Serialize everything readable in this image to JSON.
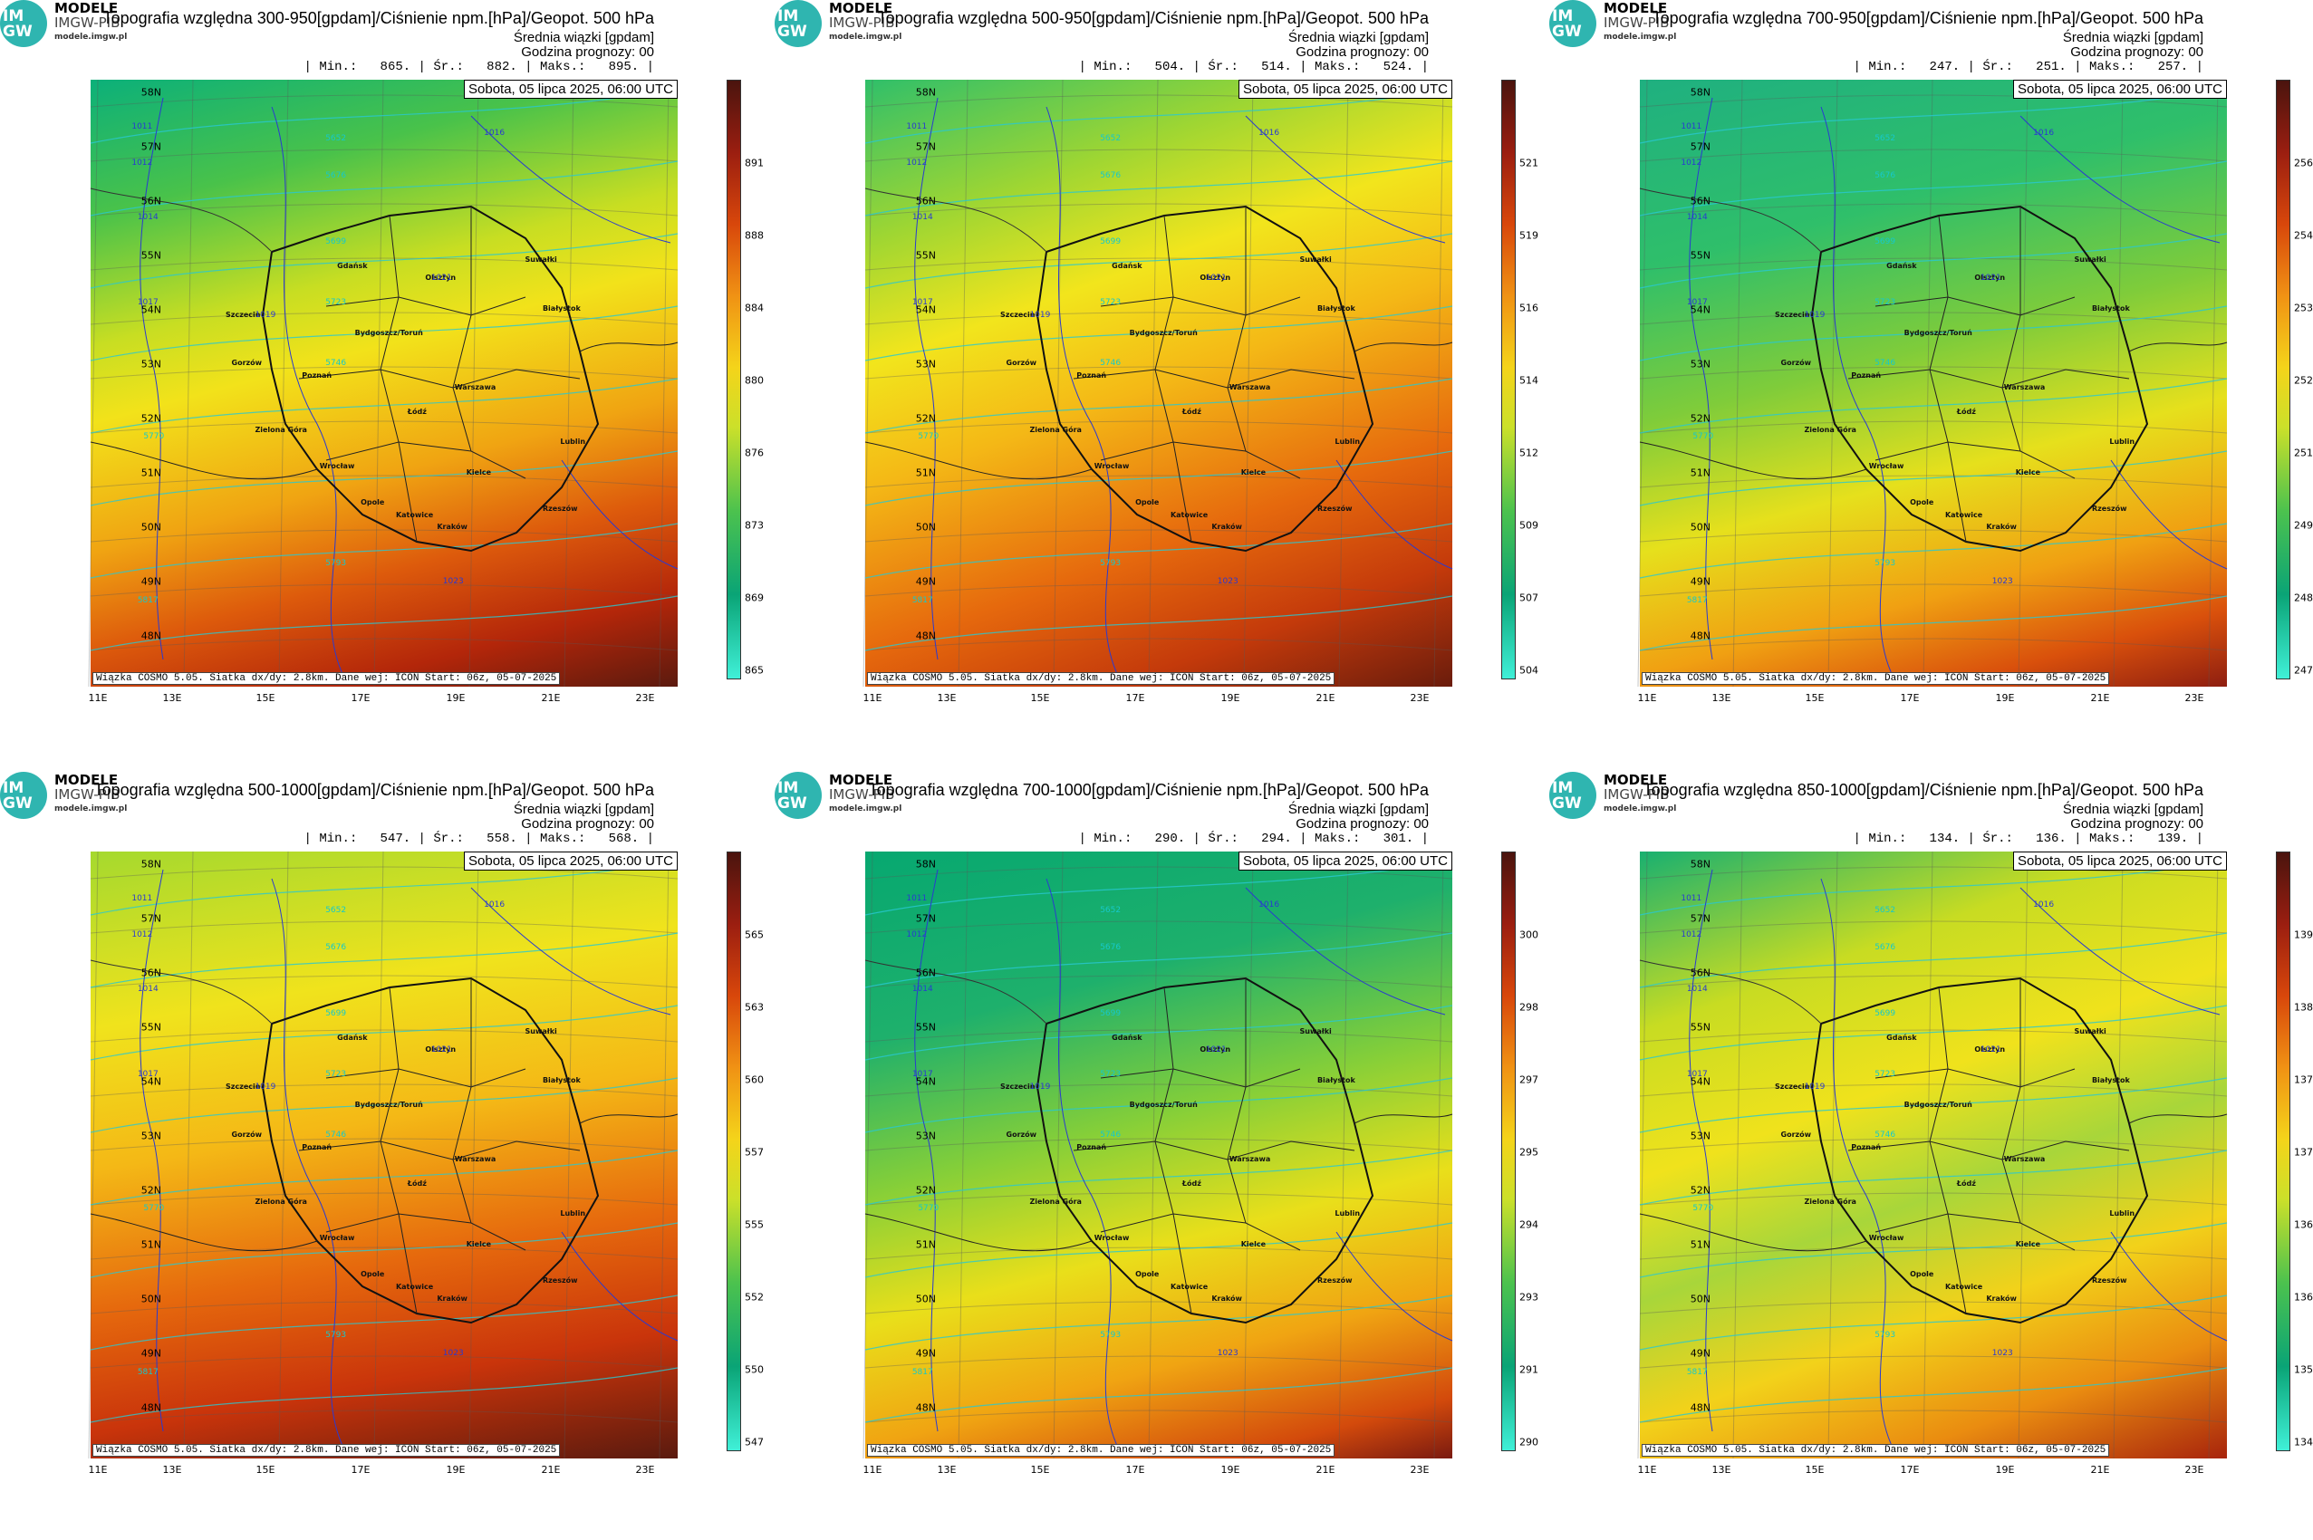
{
  "brand": {
    "name": "MODELE",
    "sub": "IMGW-PIB",
    "url": "modele.imgw.pl",
    "logo_text": "IM\nGW"
  },
  "common": {
    "subtitle": "Średnia wiązki [gpdam]",
    "forecast_hour": "Godzina prognozy: 00",
    "date": "Sobota, 05 lipca 2025, 06:00 UTC",
    "footnote": "Wiązka COSMO 5.05. Siatka dx/dy: 2.8km. Dane wej: ICON Start: 06z, 05-07-2025",
    "lat_labels": [
      "58N",
      "57N",
      "56N",
      "55N",
      "54N",
      "53N",
      "52N",
      "51N",
      "50N",
      "49N",
      "48N"
    ],
    "lon_labels": [
      "11E",
      "13E",
      "15E",
      "17E",
      "19E",
      "21E",
      "23E"
    ],
    "cities": [
      "Gdańsk",
      "Olsztyn",
      "Suwałki",
      "Szczecin",
      "Białystok",
      "Bydgoszcz/Toruń",
      "Gorzów",
      "Poznań",
      "Warszawa",
      "Łódź",
      "Zielona Góra",
      "Lublin",
      "Wrocław",
      "Kielce",
      "Opole",
      "Katowice",
      "Rzeszów",
      "Kraków"
    ],
    "isobars": [
      "1011",
      "1012",
      "1014",
      "1016",
      "1017",
      "1019",
      "1021",
      "1023"
    ],
    "geopot": [
      "5652",
      "5676",
      "5699",
      "5723",
      "5746",
      "5770",
      "5793",
      "5817"
    ]
  },
  "panels": [
    {
      "title": "Topografia względna 300-950[gpdam]/Ciśnienie npm.[hPa]/Geopot. 500 hPa",
      "stats": "| Min.:   865. | Śr.:   882. | Maks.:   895. |",
      "scale": [
        "891",
        "888",
        "884",
        "880",
        "876",
        "873",
        "869",
        "865"
      ]
    },
    {
      "title": "Topografia względna 500-950[gpdam]/Ciśnienie npm.[hPa]/Geopot. 500 hPa",
      "stats": "| Min.:   504. | Śr.:   514. | Maks.:   524. |",
      "scale": [
        "521",
        "519",
        "516",
        "514",
        "512",
        "509",
        "507",
        "504"
      ]
    },
    {
      "title": "Topografia względna 700-950[gpdam]/Ciśnienie npm.[hPa]/Geopot. 500 hPa",
      "stats": "| Min.:   247. | Śr.:   251. | Maks.:   257. |",
      "scale": [
        "256",
        "254",
        "253",
        "252",
        "251",
        "249",
        "248",
        "247"
      ]
    },
    {
      "title": "Topografia względna 500-1000[gpdam]/Ciśnienie npm.[hPa]/Geopot. 500 hPa",
      "stats": "| Min.:   547. | Śr.:   558. | Maks.:   568. |",
      "scale": [
        "565",
        "563",
        "560",
        "557",
        "555",
        "552",
        "550",
        "547"
      ]
    },
    {
      "title": "Topografia względna 700-1000[gpdam]/Ciśnienie npm.[hPa]/Geopot. 500 hPa",
      "stats": "| Min.:   290. | Śr.:   294. | Maks.:   301. |",
      "scale": [
        "300",
        "298",
        "297",
        "295",
        "294",
        "293",
        "291",
        "290"
      ]
    },
    {
      "title": "Topografia względna 850-1000[gpdam]/Ciśnienie npm.[hPa]/Geopot. 500 hPa",
      "stats": "| Min.:   134. | Śr.:   136. | Maks.:   139. |",
      "scale": [
        "139",
        "138",
        "137",
        "137",
        "136",
        "136",
        "135",
        "134"
      ]
    }
  ]
}
